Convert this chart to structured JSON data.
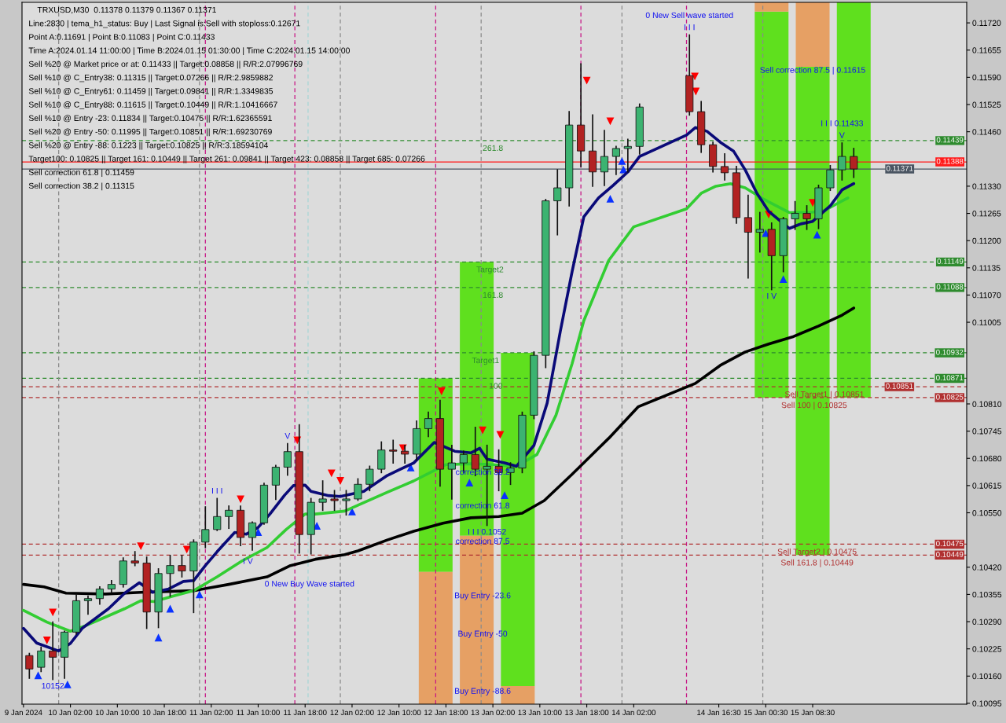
{
  "chart_data": {
    "type": "candlestick",
    "title": "TRXUSD,M30  0.11378 0.11379 0.11367 0.11371",
    "xlim": [
      "2024-01-09T17:45",
      "2024-01-16T10:45"
    ],
    "ylim": [
      0.10093,
      0.11769
    ],
    "xticks": [
      {
        "value": "2024-01-09T18:00",
        "label": "9 Jan 2024"
      },
      {
        "value": "2024-01-10T02:00",
        "label": "10 Jan 02:00"
      },
      {
        "value": "2024-01-10T10:00",
        "label": "10 Jan 10:00"
      },
      {
        "value": "2024-01-10T18:00",
        "label": "10 Jan 18:00"
      },
      {
        "value": "2024-01-11T02:00",
        "label": "11 Jan 02:00"
      },
      {
        "value": "2024-01-11T10:00",
        "label": "11 Jan 10:00"
      },
      {
        "value": "2024-01-11T18:00",
        "label": "11 Jan 18:00"
      },
      {
        "value": "2024-01-12T02:00",
        "label": "12 Jan 02:00"
      },
      {
        "value": "2024-01-12T10:00",
        "label": "12 Jan 10:00"
      },
      {
        "value": "2024-01-12T18:00",
        "label": "12 Jan 18:00"
      },
      {
        "value": "2024-01-13T02:00",
        "label": "13 Jan 02:00"
      },
      {
        "value": "2024-01-13T10:00",
        "label": "13 Jan 10:00"
      },
      {
        "value": "2024-01-13T18:00",
        "label": "13 Jan 18:00"
      },
      {
        "value": "2024-01-14T02:00",
        "label": "14 Jan 02:00"
      },
      {
        "value": "2024-01-14T16:30",
        "label": "14 Jan 16:30"
      },
      {
        "value": "2024-01-15T00:30",
        "label": "15 Jan 00:30"
      },
      {
        "value": "2024-01-15T08:30",
        "label": "15 Jan 08:30"
      }
    ],
    "yticks": [
      {
        "value": 0.1172,
        "label": "0.11720"
      },
      0.11655,
      {
        "value": 0.1159,
        "label": "0.11590"
      },
      0.11525,
      {
        "value": 0.1146,
        "label": "0.11460"
      },
      {
        "value": 0.1133,
        "label": "0.11330"
      },
      0.11265,
      {
        "value": 0.112,
        "label": "0.11200"
      },
      0.11135,
      {
        "value": 0.1107,
        "label": "0.11070"
      },
      0.11005,
      {
        "value": 0.1081,
        "label": "0.10810"
      },
      0.10745,
      {
        "value": 0.1068,
        "label": "0.10680"
      },
      0.10615,
      {
        "value": 0.1055,
        "label": "0.10550"
      },
      {
        "value": 0.1042,
        "label": "0.10420"
      },
      0.10355,
      {
        "value": 0.1029,
        "label": "0.10290"
      },
      0.10225,
      {
        "value": 0.1016,
        "label": "0.10160"
      },
      0.10095
    ],
    "x": [
      "2024-01-09T19:00",
      "2024-01-09T21:00",
      "2024-01-09T23:00",
      "2024-01-10T01:00",
      "2024-01-10T03:00",
      "2024-01-10T05:00",
      "2024-01-10T07:00",
      "2024-01-10T09:00",
      "2024-01-10T11:00",
      "2024-01-10T13:00",
      "2024-01-10T15:00",
      "2024-01-10T17:00",
      "2024-01-10T19:00",
      "2024-01-10T21:00",
      "2024-01-10T23:00",
      "2024-01-11T01:00",
      "2024-01-11T03:00",
      "2024-01-11T05:00",
      "2024-01-11T07:00",
      "2024-01-11T09:00",
      "2024-01-11T11:00",
      "2024-01-11T13:00",
      "2024-01-11T15:00",
      "2024-01-11T17:00",
      "2024-01-11T19:00",
      "2024-01-11T21:00",
      "2024-01-11T23:00",
      "2024-01-12T01:00",
      "2024-01-12T03:00",
      "2024-01-12T05:00",
      "2024-01-12T07:00",
      "2024-01-12T09:00",
      "2024-01-12T11:00",
      "2024-01-12T13:00",
      "2024-01-12T15:00",
      "2024-01-12T17:00",
      "2024-01-12T19:00",
      "2024-01-12T21:00",
      "2024-01-12T23:00",
      "2024-01-13T01:00",
      "2024-01-13T03:00",
      "2024-01-13T05:00",
      "2024-01-13T07:00",
      "2024-01-13T09:00",
      "2024-01-13T11:00",
      "2024-01-13T13:00",
      "2024-01-13T15:00",
      "2024-01-13T17:00",
      "2024-01-13T19:00",
      "2024-01-13T21:00",
      "2024-01-13T23:00",
      "2024-01-14T01:00",
      "2024-01-14T03:00",
      "2024-01-14T11:30",
      "2024-01-14T13:30",
      "2024-01-14T15:30",
      "2024-01-14T17:30",
      "2024-01-14T19:30",
      "2024-01-14T21:30",
      "2024-01-14T23:30",
      "2024-01-15T01:30",
      "2024-01-15T03:30",
      "2024-01-15T05:30",
      "2024-01-15T07:30",
      "2024-01-15T09:30",
      "2024-01-15T11:30",
      "2024-01-15T13:30",
      "2024-01-15T15:30"
    ],
    "ohlc": [
      [
        0.10209,
        0.10214,
        0.10155,
        0.10177
      ],
      [
        0.10181,
        0.10229,
        0.10171,
        0.1022
      ],
      [
        0.1022,
        0.10289,
        0.10152,
        0.10205
      ],
      [
        0.10205,
        0.10267,
        0.10155,
        0.10265
      ],
      [
        0.10265,
        0.10355,
        0.1026,
        0.1034
      ],
      [
        0.1034,
        0.10351,
        0.10308,
        0.10345
      ],
      [
        0.10345,
        0.10373,
        0.10332,
        0.10368
      ],
      [
        0.10368,
        0.10388,
        0.1036,
        0.10379
      ],
      [
        0.10379,
        0.10442,
        0.10373,
        0.10435
      ],
      [
        0.10435,
        0.10457,
        0.10424,
        0.1043
      ],
      [
        0.1043,
        0.10444,
        0.10274,
        0.10313
      ],
      [
        0.10313,
        0.10416,
        0.10276,
        0.10405
      ],
      [
        0.10405,
        0.10448,
        0.10351,
        0.10424
      ],
      [
        0.10424,
        0.10448,
        0.10397,
        0.10411
      ],
      [
        0.10411,
        0.10485,
        0.10312,
        0.1048
      ],
      [
        0.1048,
        0.10564,
        0.10467,
        0.1051
      ],
      [
        0.1051,
        0.10584,
        0.10508,
        0.10541
      ],
      [
        0.10541,
        0.10566,
        0.10513,
        0.10556
      ],
      [
        0.10556,
        0.10566,
        0.10472,
        0.10491
      ],
      [
        0.10491,
        0.10528,
        0.10461,
        0.10526
      ],
      [
        0.10526,
        0.1062,
        0.10523,
        0.10616
      ],
      [
        0.10616,
        0.10663,
        0.10582,
        0.10659
      ],
      [
        0.10659,
        0.10715,
        0.1064,
        0.10696
      ],
      [
        0.10696,
        0.1076,
        0.10454,
        0.10498
      ],
      [
        0.10498,
        0.10584,
        0.10452,
        0.10575
      ],
      [
        0.10575,
        0.10626,
        0.10556,
        0.10583
      ],
      [
        0.10583,
        0.10603,
        0.10556,
        0.10579
      ],
      [
        0.10579,
        0.10603,
        0.10545,
        0.10583
      ],
      [
        0.10583,
        0.10631,
        0.1058,
        0.10618
      ],
      [
        0.10618,
        0.10661,
        0.10603,
        0.10654
      ],
      [
        0.10654,
        0.10719,
        0.10646,
        0.107
      ],
      [
        0.107,
        0.10723,
        0.10669,
        0.10697
      ],
      [
        0.10697,
        0.10711,
        0.10669,
        0.1069
      ],
      [
        0.1069,
        0.10769,
        0.10676,
        0.10751
      ],
      [
        0.10751,
        0.1079,
        0.10732,
        0.10775
      ],
      [
        0.10775,
        0.10818,
        0.10614,
        0.10654
      ],
      [
        0.10654,
        0.10711,
        0.10583,
        0.10669
      ],
      [
        0.10669,
        0.10697,
        0.10646,
        0.10689
      ],
      [
        0.10689,
        0.10754,
        0.10639,
        0.10654
      ],
      [
        0.10654,
        0.10711,
        0.1052,
        0.10661
      ],
      [
        0.10661,
        0.107,
        0.10603,
        0.10646
      ],
      [
        0.10646,
        0.10669,
        0.10618,
        0.10657
      ],
      [
        0.10657,
        0.1079,
        0.10646,
        0.10783
      ],
      [
        0.10783,
        0.10934,
        0.10775,
        0.10926
      ],
      [
        0.10926,
        0.11298,
        0.10897,
        0.11295
      ],
      [
        0.11295,
        0.11369,
        0.11214,
        0.11326
      ],
      [
        0.11326,
        0.11508,
        0.11283,
        0.11476
      ],
      [
        0.11476,
        0.11622,
        0.11377,
        0.11414
      ],
      [
        0.11414,
        0.115,
        0.1133,
        0.11364
      ],
      [
        0.11364,
        0.11463,
        0.11332,
        0.11401
      ],
      [
        0.11401,
        0.11425,
        0.11358,
        0.1142
      ],
      [
        0.1142,
        0.11442,
        0.11364,
        0.11425
      ],
      [
        0.11425,
        0.11526,
        0.11407,
        0.11519
      ],
      [
        0.11594,
        0.11691,
        0.115,
        0.11508
      ],
      [
        0.11508,
        0.11532,
        0.11411,
        0.11429
      ],
      [
        0.11429,
        0.11435,
        0.11364,
        0.11377
      ],
      [
        0.11377,
        0.11407,
        0.11345,
        0.11362
      ],
      [
        0.11362,
        0.11377,
        0.11242,
        0.11255
      ],
      [
        0.11255,
        0.11308,
        0.11111,
        0.1122
      ],
      [
        0.1122,
        0.11267,
        0.11173,
        0.11227
      ],
      [
        0.11227,
        0.11242,
        0.11083,
        0.11164
      ],
      [
        0.11164,
        0.11255,
        0.11126,
        0.11252
      ],
      [
        0.11252,
        0.11293,
        0.11227,
        0.11265
      ],
      [
        0.11265,
        0.11283,
        0.11227,
        0.11252
      ],
      [
        0.11252,
        0.11332,
        0.11229,
        0.11326
      ],
      [
        0.11326,
        0.11379,
        0.1132,
        0.11369
      ],
      [
        0.11369,
        0.11433,
        0.11345,
        0.11401
      ],
      [
        0.11401,
        0.1142,
        0.11351,
        0.11371
      ]
    ],
    "colors": [
      "#b22222",
      "#3cb371",
      "#b22222",
      "#3cb371",
      "#3cb371",
      "#3cb371",
      "#3cb371",
      "#3cb371",
      "#3cb371",
      "#b22222",
      "#b22222",
      "#3cb371",
      "#3cb371",
      "#b22222",
      "#3cb371",
      "#3cb371",
      "#3cb371",
      "#3cb371",
      "#b22222",
      "#3cb371",
      "#3cb371",
      "#3cb371",
      "#3cb371",
      "#b22222",
      "#3cb371",
      "#3cb371",
      "#b22222",
      "#3cb371",
      "#3cb371",
      "#3cb371",
      "#3cb371",
      "#b22222",
      "#b22222",
      "#3cb371",
      "#3cb371",
      "#b22222",
      "#3cb371",
      "#3cb371",
      "#b22222",
      "#3cb371",
      "#b22222",
      "#3cb371",
      "#3cb371",
      "#3cb371",
      "#3cb371",
      "#3cb371",
      "#3cb371",
      "#b22222",
      "#b22222",
      "#3cb371",
      "#3cb371",
      "#3cb371",
      "#3cb371",
      "#b22222",
      "#b22222",
      "#b22222",
      "#b22222",
      "#b22222",
      "#b22222",
      "#3cb371",
      "#b22222",
      "#3cb371",
      "#3cb371",
      "#b22222",
      "#3cb371",
      "#3cb371",
      "#3cb371",
      "#b22222"
    ],
    "series": [
      {
        "type": "bar",
        "color": "#5fe01e",
        "x": [
          "2024-01-12T16:15",
          "2024-01-12T23:15",
          "2024-01-13T06:15",
          "2024-01-15T01:30",
          "2024-01-15T08:30",
          "2024-01-15T15:30"
        ],
        "base": [
          0.10409,
          0.10495,
          0.10136,
          0.10825,
          0.10449,
          0.10825
        ],
        "values": [
          0.00462,
          0.00654,
          0.00796,
          0.00922,
          0.01166,
          0.00944
        ]
      },
      {
        "type": "bar",
        "color": "#e6a064",
        "x": [
          "2024-01-12T16:15",
          "2024-01-12T23:15",
          "2024-01-13T06:15",
          "2024-01-15T01:30",
          "2024-01-15T08:30"
        ],
        "base": [
          0.10093,
          0.10093,
          0.10093,
          0.11747,
          0.11615
        ],
        "values": [
          0.00316,
          0.00402,
          0.00043,
          0.00022,
          0.00154
        ]
      },
      {
        "type": "scatter",
        "color": "#ff0000",
        "marker": "triangle",
        "x": [
          "2024-01-09T22:00",
          "2024-01-09T23:00",
          "2024-01-10T14:00",
          "2024-01-10T21:50",
          "2024-01-11T07:00",
          "2024-01-11T16:40",
          "2024-01-11T22:30",
          "2024-01-12T00:00",
          "2024-01-12T10:40",
          "2024-01-12T17:15",
          "2024-01-13T00:15",
          "2024-01-13T03:15",
          "2024-01-13T18:00",
          "2024-01-13T22:00",
          "2024-01-14T12:25",
          "2024-01-14T12:35",
          "2024-01-15T01:00",
          "2024-01-15T08:30"
        ],
        "values": [
          0.10245,
          0.10312,
          0.1047,
          0.10462,
          0.10582,
          0.10723,
          0.10644,
          0.10626,
          0.10704,
          0.1084,
          0.10747,
          0.10736,
          0.11582,
          0.11485,
          0.11592,
          0.11556,
          0.11262,
          0.1129
        ]
      },
      {
        "type": "scatter",
        "color": "#0a32ff",
        "marker": "triangle",
        "x": [
          "2024-01-09T20:30",
          "2024-01-10T01:30",
          "2024-01-10T17:00",
          "2024-01-10T19:00",
          "2024-01-11T00:00",
          "2024-01-11T10:00",
          "2024-01-11T20:00",
          "2024-01-12T02:00",
          "2024-01-12T12:00",
          "2024-01-12T22:00",
          "2024-01-13T04:00",
          "2024-01-13T22:00",
          "2024-01-14T00:00",
          "2024-01-14T00:15",
          "2024-01-15T00:30",
          "2024-01-15T03:30",
          "2024-01-15T09:15"
        ],
        "values": [
          0.10162,
          0.1014,
          0.10252,
          0.10321,
          0.10355,
          0.10504,
          0.10519,
          0.10553,
          0.10658,
          0.10622,
          0.10592,
          0.113,
          0.1139,
          0.1137,
          0.11218,
          0.11108,
          0.11214
        ]
      },
      {
        "type": "line",
        "color": "#000000",
        "x": [
          "2024-01-09T18:00",
          "2024-01-09T21:30",
          "2024-01-10T01:15",
          "2024-01-10T08:00",
          "2024-01-10T14:00",
          "2024-01-10T23:00",
          "2024-01-11T05:00",
          "2024-01-11T11:30",
          "2024-01-11T15:30",
          "2024-01-11T19:45",
          "2024-01-12T00:45",
          "2024-01-12T03:00",
          "2024-01-12T08:00",
          "2024-01-12T12:30",
          "2024-01-12T17:30",
          "2024-01-12T22:15",
          "2024-01-13T03:00",
          "2024-01-13T07:00",
          "2024-01-13T10:45",
          "2024-01-13T15:30",
          "2024-01-13T21:45",
          "2024-01-14T02:45",
          "2024-01-14T12:30",
          "2024-01-14T16:45",
          "2024-01-14T21:00",
          "2024-01-15T01:00",
          "2024-01-15T05:15",
          "2024-01-15T09:30",
          "2024-01-15T13:30",
          "2024-01-15T15:30"
        ],
        "values": [
          0.10379,
          0.10373,
          0.10358,
          0.10356,
          0.1036,
          0.10364,
          0.10379,
          0.10397,
          0.10424,
          0.10439,
          0.1045,
          0.10459,
          0.10485,
          0.10506,
          0.10525,
          0.10538,
          0.10541,
          0.10549,
          0.10579,
          0.10642,
          0.10728,
          0.10803,
          0.10859,
          0.10902,
          0.10934,
          0.10953,
          0.10971,
          0.10996,
          0.11022,
          0.11039
        ]
      },
      {
        "type": "line",
        "color": "#32cd32",
        "x": [
          "2024-01-09T18:00",
          "2024-01-09T22:00",
          "2024-01-10T02:00",
          "2024-01-10T04:30",
          "2024-01-10T07:30",
          "2024-01-10T11:15",
          "2024-01-10T14:00",
          "2024-01-10T16:15",
          "2024-01-10T19:30",
          "2024-01-10T23:00",
          "2024-01-11T03:00",
          "2024-01-11T07:15",
          "2024-01-11T11:30",
          "2024-01-11T14:45",
          "2024-01-11T18:00",
          "2024-01-11T19:45",
          "2024-01-12T00:45",
          "2024-01-12T03:00",
          "2024-01-12T08:00",
          "2024-01-12T12:30",
          "2024-01-12T18:00",
          "2024-01-12T22:15",
          "2024-01-13T02:00",
          "2024-01-13T06:00",
          "2024-01-13T09:30",
          "2024-01-13T12:45",
          "2024-01-13T15:30",
          "2024-01-13T17:30",
          "2024-01-13T21:45",
          "2024-01-14T02:00",
          "2024-01-14T11:00",
          "2024-01-14T13:30",
          "2024-01-14T16:00",
          "2024-01-14T18:30",
          "2024-01-14T21:00",
          "2024-01-15T00:15",
          "2024-01-15T04:30",
          "2024-01-15T08:30",
          "2024-01-15T10:30",
          "2024-01-15T12:45",
          "2024-01-15T14:30"
        ],
        "values": [
          0.10317,
          0.10289,
          0.10267,
          0.1028,
          0.10298,
          0.10321,
          0.1034,
          0.10338,
          0.10351,
          0.10364,
          0.10397,
          0.10435,
          0.10467,
          0.1051,
          0.10547,
          0.10547,
          0.10554,
          0.10568,
          0.10599,
          0.10626,
          0.10665,
          0.10667,
          0.10665,
          0.10661,
          0.10689,
          0.10783,
          0.10906,
          0.11009,
          0.11153,
          0.11233,
          0.11276,
          0.11313,
          0.1133,
          0.11336,
          0.11326,
          0.11298,
          0.11267,
          0.11268,
          0.11272,
          0.11289,
          0.11302
        ]
      },
      {
        "type": "line",
        "color": "#0a0a78",
        "x": [
          "2024-01-09T18:00",
          "2024-01-09T20:15",
          "2024-01-10T00:00",
          "2024-01-10T02:00",
          "2024-01-10T04:00",
          "2024-01-10T08:30",
          "2024-01-10T11:15",
          "2024-01-10T13:45",
          "2024-01-10T16:00",
          "2024-01-10T18:45",
          "2024-01-10T21:15",
          "2024-01-10T23:00",
          "2024-01-11T01:00",
          "2024-01-11T03:00",
          "2024-01-11T06:00",
          "2024-01-11T08:00",
          "2024-01-11T10:00",
          "2024-01-11T12:00",
          "2024-01-11T14:30",
          "2024-01-11T16:00",
          "2024-01-11T18:00",
          "2024-01-11T19:00",
          "2024-01-11T22:00",
          "2024-01-12T00:00",
          "2024-01-12T04:00",
          "2024-01-12T08:00",
          "2024-01-12T12:30",
          "2024-01-12T16:00",
          "2024-01-12T19:30",
          "2024-01-12T22:15",
          "2024-01-12T23:45",
          "2024-01-13T01:00",
          "2024-01-13T04:00",
          "2024-01-13T06:00",
          "2024-01-13T09:00",
          "2024-01-13T11:15",
          "2024-01-13T13:30",
          "2024-01-13T15:30",
          "2024-01-13T17:30",
          "2024-01-13T20:00",
          "2024-01-13T22:30",
          "2024-01-14T01:00",
          "2024-01-14T03:00",
          "2024-01-14T11:00",
          "2024-01-14T12:30",
          "2024-01-14T14:30",
          "2024-01-14T16:45",
          "2024-01-14T19:00",
          "2024-01-14T21:00",
          "2024-01-14T23:00",
          "2024-01-15T01:00",
          "2024-01-15T04:30",
          "2024-01-15T06:30",
          "2024-01-15T08:30",
          "2024-01-15T11:30",
          "2024-01-15T13:30",
          "2024-01-15T15:30"
        ],
        "values": [
          0.10274,
          0.10239,
          0.1022,
          0.10238,
          0.10274,
          0.10321,
          0.10358,
          0.10383,
          0.1036,
          0.10368,
          0.10386,
          0.10388,
          0.10424,
          0.10457,
          0.10503,
          0.10499,
          0.10515,
          0.10547,
          0.10592,
          0.10615,
          0.10616,
          0.10601,
          0.10591,
          0.10589,
          0.10601,
          0.10639,
          0.10669,
          0.10718,
          0.10697,
          0.10693,
          0.10704,
          0.10678,
          0.10669,
          0.10661,
          0.10711,
          0.10812,
          0.10984,
          0.11126,
          0.11257,
          0.11302,
          0.11332,
          0.11364,
          0.11401,
          0.11452,
          0.1147,
          0.11461,
          0.11435,
          0.11414,
          0.11369,
          0.11313,
          0.1127,
          0.11229,
          0.1124,
          0.11246,
          0.11283,
          0.11321,
          0.11336
        ]
      }
    ],
    "ref_lines": [
      {
        "axis": "y",
        "value": 0.11439,
        "label": "0.11439",
        "color": "#2e8b2e",
        "line_style": "dashed"
      },
      {
        "axis": "y",
        "value": 0.11388,
        "label": "0.11388",
        "color": "#ff1a1a",
        "line_style": "solid"
      },
      {
        "axis": "y",
        "value": 0.11371,
        "label": "0.11371",
        "color": "#4a5562",
        "line_style": "solid"
      },
      {
        "axis": "y",
        "value": 0.11149,
        "label": "0.11149",
        "color": "#2e8b2e",
        "line_style": "dashed"
      },
      {
        "axis": "y",
        "value": 0.11088,
        "label": "0.11088",
        "color": "#2e8b2e",
        "line_style": "dashed"
      },
      {
        "axis": "y",
        "value": 0.10932,
        "label": "0.10932",
        "color": "#2e8b2e",
        "line_style": "dashed"
      },
      {
        "axis": "y",
        "value": 0.10871,
        "label": "0.10871",
        "color": "#2e8b2e",
        "line_style": "dashed"
      },
      {
        "axis": "y",
        "value": 0.10851,
        "label": "0.10851",
        "color": "#b03030",
        "line_style": "dashed"
      },
      {
        "axis": "y",
        "value": 0.10825,
        "label": "0.10825",
        "color": "#b03030",
        "line_style": "dashed"
      },
      {
        "axis": "y",
        "value": 0.10475,
        "label": "0.10475",
        "color": "#b03030",
        "line_style": "dashed"
      },
      {
        "axis": "y",
        "value": 0.10449,
        "label": "0.10449",
        "color": "#b03030",
        "line_style": "dashed"
      },
      {
        "axis": "x",
        "value": "2024-01-10T00:00",
        "color": "#8a8a8a",
        "line_style": "dashed"
      },
      {
        "axis": "x",
        "value": "2024-01-11T00:00",
        "color": "#8a8a8a",
        "line_style": "dashed"
      },
      {
        "axis": "x",
        "value": "2024-01-12T00:00",
        "color": "#8a8a8a",
        "line_style": "dashed"
      },
      {
        "axis": "x",
        "value": "2024-01-13T00:00",
        "color": "#8a8a8a",
        "line_style": "dashed"
      },
      {
        "axis": "x",
        "value": "2024-01-14T00:00",
        "color": "#8a8a8a",
        "line_style": "dashed"
      },
      {
        "axis": "x",
        "value": "2024-01-15T00:00",
        "color": "#8a8a8a",
        "line_style": "dashed"
      },
      {
        "axis": "x",
        "value": "2024-01-11T01:00",
        "color": "#c71585",
        "line_style": "dashed"
      },
      {
        "axis": "x",
        "value": "2024-01-11T16:15",
        "color": "#c71585",
        "line_style": "dashed"
      },
      {
        "axis": "x",
        "value": "2024-01-12T16:15",
        "color": "#c71585",
        "line_style": "dashed"
      },
      {
        "axis": "x",
        "value": "2024-01-13T17:00",
        "color": "#c71585",
        "line_style": "dashed"
      },
      {
        "axis": "x",
        "value": "2024-01-14T11:00",
        "color": "#c71585",
        "line_style": "dashed"
      },
      {
        "axis": "x",
        "value": "2024-01-11T18:30",
        "color": "#a6d6d6",
        "line_style": "dashed"
      }
    ],
    "annotations": [
      "Line:2830 | tema_h1_status: Buy | Last Signal is:Sell with stoploss:0.12671",
      "Point A:0.11691 | Point B:0.11083 | Point C:0.11433",
      "Time A:2024.01.14 11:00:00 | Time B:2024.01.15 01:30:00 | Time C:2024.01.15 14:00:00",
      "Sell %20 @ Market price or at: 0.11433 || Target:0.08858 || R/R:2.07996769",
      "Sell %10 @ C_Entry38: 0.11315 || Target:0.07266 || R/R:2.9859882",
      "Sell %10 @ C_Entry61: 0.11459 || Target:0.09841 || R/R:1.3349835",
      "Sell %10 @ C_Entry88: 0.11615 || Target:0.10449 || R/R:1.10416667",
      "Sell %10 @ Entry -23: 0.11834 || Target:0.10475 || R/R:1.62365591",
      "Sell %20 @ Entry -50: 0.11995 || Target:0.10851 || R/R:1.69230769",
      "Sell %20 @ Entry -88: 0.1223 || Target:0.10825 || R/R:3.18594104",
      "Target100: 0.10825 || Target 161: 0.10449 || Target 261: 0.09841 || Target 423: 0.08858 || Target 685: 0.07266",
      "Sell correction 61.8 | 0.11459",
      "Sell correction 38.2 | 0.11315",
      {
        "text": "I I I",
        "x": "2024-01-14T11:30",
        "y": 0.11691
      },
      {
        "text": "0 New Sell wave started",
        "x": "2024-01-14T11:30",
        "y": 0.11691
      },
      {
        "text": "Sell correction 87.5 | 0.11615",
        "x": "2024-01-15T08:30",
        "y": 0.11615
      },
      {
        "text": "V",
        "x": "2024-01-15T13:30",
        "y": 0.11433
      },
      {
        "text": "I I I 0.11433",
        "x": "2024-01-15T13:30",
        "y": 0.11433
      },
      {
        "text": "261.8",
        "x": "2024-01-13T02:00",
        "y": 0.11439
      },
      {
        "text": "Target2",
        "x": "2024-01-13T01:30",
        "y": 0.11149
      },
      {
        "text": "161.8",
        "x": "2024-01-13T02:00",
        "y": 0.11088
      },
      {
        "text": "Target1",
        "x": "2024-01-13T00:45",
        "y": 0.10932
      },
      {
        "text": "100",
        "x": "2024-01-13T02:30",
        "y": 0.10871
      },
      {
        "text": "Sell Target1 | 0.10851",
        "x": "2024-01-15T10:30",
        "y": 0.10851
      },
      {
        "text": "Sell 100 | 0.10825",
        "x": "2024-01-15T08:45",
        "y": 0.10825
      },
      {
        "text": "Sell Target2 | 0.10475",
        "x": "2024-01-15T09:15",
        "y": 0.10475
      },
      {
        "text": "Sell 161.8 | 0.10449",
        "x": "2024-01-15T09:15",
        "y": 0.10449
      },
      {
        "text": "I V",
        "x": "2024-01-15T01:30",
        "y": 0.11083
      },
      {
        "text": "V",
        "x": "2024-01-11T15:00",
        "y": 0.10715
      },
      {
        "text": "I I I",
        "x": "2024-01-11T03:00",
        "y": 0.10584
      },
      {
        "text": "I V",
        "x": "2024-01-11T08:15",
        "y": 0.10442
      },
      {
        "text": "0 New Buy Wave started",
        "x": "2024-01-11T18:45",
        "y": 0.10388
      },
      {
        "text": "correction 38.2",
        "x": "2024-01-13T00:15",
        "y": 0.10655
      },
      {
        "text": "correction 61.8",
        "x": "2024-01-13T00:15",
        "y": 0.10575
      },
      {
        "text": "I I I 0.1052",
        "x": "2024-01-13T01:00",
        "y": 0.1052
      },
      {
        "text": "correction 87.5",
        "x": "2024-01-13T00:15",
        "y": 0.1049
      },
      {
        "text": "Buy Entry -23.6",
        "x": "2024-01-13T00:15",
        "y": 0.1036
      },
      {
        "text": "Buy Entry -50",
        "x": "2024-01-13T00:15",
        "y": 0.10269
      },
      {
        "text": "Buy Entry -88.6",
        "x": "2024-01-13T00:15",
        "y": 0.10132
      },
      {
        "text": "10152",
        "x": "2024-01-09T23:00",
        "y": 0.10152
      }
    ]
  }
}
